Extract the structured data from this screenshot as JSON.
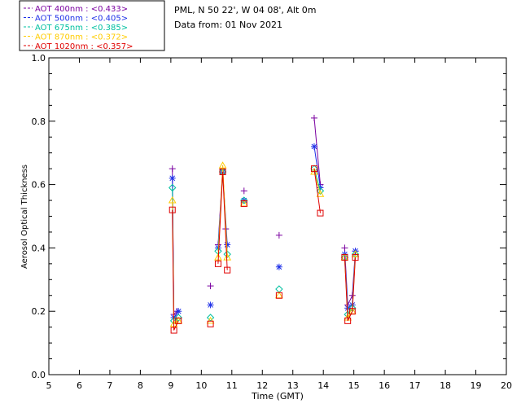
{
  "header": {
    "site": "PML, N 50 22', W 04 08', Alt 0m",
    "date": "Data from: 01 Nov 2021"
  },
  "chart_data": {
    "type": "line",
    "xlabel": "Time (GMT)",
    "ylabel": "Aerosol Optical Thickness",
    "xlim": [
      5,
      20
    ],
    "ylim": [
      0.0,
      1.0
    ],
    "xticks": [
      "5",
      "6",
      "7",
      "8",
      "9",
      "10",
      "11",
      "12",
      "13",
      "14",
      "15",
      "16",
      "17",
      "18",
      "19",
      "20"
    ],
    "yticks": [
      "0.0",
      "0.2",
      "0.4",
      "0.6",
      "0.8",
      "1.0"
    ],
    "legend_position": "top-left",
    "series": [
      {
        "name": "AOT  400nm : <0.433>",
        "color": "#7a00a0",
        "marker": "plus",
        "points": [
          [
            9.05,
            0.65
          ],
          [
            9.1,
            0.19
          ],
          [
            9.2,
            0.2
          ],
          [
            10.3,
            0.28
          ],
          [
            10.55,
            0.41
          ],
          [
            10.7,
            0.65
          ],
          [
            10.8,
            0.46
          ],
          [
            11.4,
            0.58
          ],
          [
            12.55,
            0.44
          ],
          [
            13.7,
            0.81
          ],
          [
            13.9,
            0.6
          ],
          [
            14.7,
            0.4
          ],
          [
            14.8,
            0.22
          ],
          [
            14.95,
            0.25
          ],
          [
            15.05,
            0.39
          ]
        ],
        "segments": [
          [
            0,
            1,
            2
          ],
          [
            4,
            5,
            6
          ],
          [
            9,
            10
          ],
          [
            11,
            12,
            13,
            14
          ]
        ]
      },
      {
        "name": "AOT  500nm : <0.405>",
        "color": "#1e30e8",
        "marker": "star",
        "points": [
          [
            9.05,
            0.62
          ],
          [
            9.1,
            0.18
          ],
          [
            9.25,
            0.2
          ],
          [
            10.3,
            0.22
          ],
          [
            10.55,
            0.4
          ],
          [
            10.7,
            0.64
          ],
          [
            10.85,
            0.41
          ],
          [
            11.4,
            0.55
          ],
          [
            12.55,
            0.34
          ],
          [
            13.7,
            0.72
          ],
          [
            13.9,
            0.59
          ],
          [
            14.7,
            0.38
          ],
          [
            14.8,
            0.21
          ],
          [
            14.95,
            0.22
          ],
          [
            15.05,
            0.39
          ]
        ],
        "segments": [
          [
            0,
            1,
            2
          ],
          [
            4,
            5,
            6
          ],
          [
            9,
            10
          ],
          [
            11,
            12,
            13,
            14
          ]
        ]
      },
      {
        "name": "AOT  675nm : <0.385>",
        "color": "#00c0a0",
        "marker": "diamond",
        "points": [
          [
            9.05,
            0.59
          ],
          [
            9.1,
            0.17
          ],
          [
            9.25,
            0.18
          ],
          [
            10.3,
            0.18
          ],
          [
            10.55,
            0.39
          ],
          [
            10.7,
            0.64
          ],
          [
            10.85,
            0.38
          ],
          [
            11.4,
            0.55
          ],
          [
            12.55,
            0.27
          ],
          [
            13.7,
            0.65
          ],
          [
            13.9,
            0.58
          ],
          [
            14.7,
            0.37
          ],
          [
            14.8,
            0.19
          ],
          [
            14.95,
            0.21
          ],
          [
            15.05,
            0.38
          ]
        ],
        "segments": [
          [
            0,
            1,
            2
          ],
          [
            4,
            5,
            6
          ],
          [
            9,
            10
          ],
          [
            11,
            12,
            13,
            14
          ]
        ]
      },
      {
        "name": "AOT  870nm : <0.372>",
        "color": "#ffcc00",
        "marker": "triangle",
        "points": [
          [
            9.05,
            0.55
          ],
          [
            9.1,
            0.16
          ],
          [
            9.25,
            0.17
          ],
          [
            10.3,
            0.17
          ],
          [
            10.55,
            0.37
          ],
          [
            10.7,
            0.66
          ],
          [
            10.85,
            0.37
          ],
          [
            11.4,
            0.54
          ],
          [
            12.55,
            0.25
          ],
          [
            13.7,
            0.64
          ],
          [
            13.9,
            0.57
          ],
          [
            14.7,
            0.37
          ],
          [
            14.8,
            0.18
          ],
          [
            14.95,
            0.2
          ],
          [
            15.05,
            0.38
          ]
        ],
        "segments": [
          [
            0,
            1,
            2
          ],
          [
            4,
            5,
            6
          ],
          [
            9,
            10
          ],
          [
            11,
            12,
            13,
            14
          ]
        ]
      },
      {
        "name": "AOT 1020nm : <0.357>",
        "color": "#e00000",
        "marker": "square",
        "points": [
          [
            9.05,
            0.52
          ],
          [
            9.1,
            0.14
          ],
          [
            9.25,
            0.17
          ],
          [
            10.3,
            0.16
          ],
          [
            10.55,
            0.35
          ],
          [
            10.7,
            0.64
          ],
          [
            10.85,
            0.33
          ],
          [
            11.4,
            0.54
          ],
          [
            12.55,
            0.25
          ],
          [
            13.7,
            0.65
          ],
          [
            13.9,
            0.51
          ],
          [
            14.7,
            0.37
          ],
          [
            14.8,
            0.17
          ],
          [
            14.95,
            0.2
          ],
          [
            15.05,
            0.37
          ]
        ],
        "segments": [
          [
            0,
            1,
            2
          ],
          [
            4,
            5,
            6
          ],
          [
            9,
            10
          ],
          [
            11,
            12,
            13,
            14
          ]
        ]
      }
    ]
  }
}
